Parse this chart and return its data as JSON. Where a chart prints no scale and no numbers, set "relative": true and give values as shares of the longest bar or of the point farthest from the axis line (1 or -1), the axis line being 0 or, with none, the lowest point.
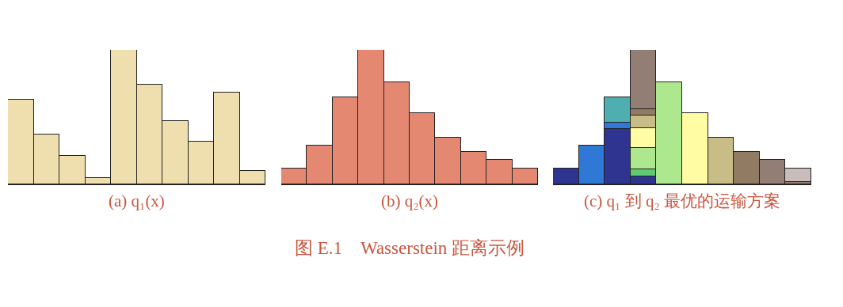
{
  "chart_data": [
    {
      "type": "bar",
      "relative": true,
      "xlabel": "(a) q₁(x)",
      "categories": [
        null,
        null,
        null,
        null,
        null,
        null,
        null,
        null,
        null,
        null
      ],
      "series": [
        {
          "color": "#efdfae",
          "values": [
            0.63,
            0.37,
            0.21,
            0.05,
            1,
            0.74,
            0.47,
            0.32,
            0.68,
            0.1
          ]
        }
      ]
    },
    {
      "type": "bar",
      "relative": true,
      "xlabel": "(b) q₂(x)",
      "categories": [
        null,
        null,
        null,
        null,
        null,
        null,
        null,
        null,
        null,
        null
      ],
      "annotations": [
        "图 E.1　Wasserstein 距离示例"
      ],
      "series": [
        {
          "color": "#e48871",
          "values": [
            0.12,
            0.29,
            0.65,
            1,
            0.76,
            0.53,
            0.35,
            0.24,
            0.18,
            0.12
          ]
        }
      ]
    },
    {
      "type": "bar",
      "relative": true,
      "stacked": true,
      "xlabel": "(c) q₁ 到 q₂ 最优的运输方案",
      "categories": [
        null,
        null,
        null,
        null,
        null,
        null,
        null,
        null,
        null,
        null
      ],
      "series": [
        {
          "color": "#2e3490",
          "values": [
            0.12,
            null,
            0.41,
            0.06,
            null,
            null,
            null,
            null,
            null,
            null
          ]
        },
        {
          "color": "#2f78d6",
          "values": [
            null,
            0.29,
            0.05,
            null,
            null,
            null,
            null,
            null,
            null,
            null
          ]
        },
        {
          "color": "#4eaeb0",
          "values": [
            null,
            null,
            0.19,
            null,
            null,
            null,
            null,
            null,
            null,
            null
          ]
        },
        {
          "color": "#5ecb72",
          "values": [
            null,
            null,
            null,
            0.05,
            null,
            null,
            null,
            null,
            null,
            null
          ]
        },
        {
          "color": "#aee88e",
          "values": [
            null,
            null,
            null,
            0.16,
            0.76,
            null,
            null,
            null,
            null,
            null
          ]
        },
        {
          "color": "#fffca3",
          "values": [
            null,
            null,
            null,
            0.15,
            null,
            0.53,
            null,
            null,
            null,
            null
          ]
        },
        {
          "color": "#c9bd87",
          "values": [
            null,
            null,
            null,
            0.09,
            null,
            null,
            0.35,
            null,
            null,
            null
          ]
        },
        {
          "color": "#917b62",
          "values": [
            null,
            null,
            null,
            0.05,
            null,
            null,
            null,
            0.24,
            null,
            null
          ]
        },
        {
          "color": "#937e75",
          "values": [
            null,
            null,
            null,
            0.44,
            null,
            null,
            null,
            null,
            0.18,
            0.02
          ]
        },
        {
          "color": "#c8bdbb",
          "values": [
            null,
            null,
            null,
            null,
            null,
            null,
            null,
            null,
            null,
            0.1
          ]
        }
      ]
    }
  ]
}
